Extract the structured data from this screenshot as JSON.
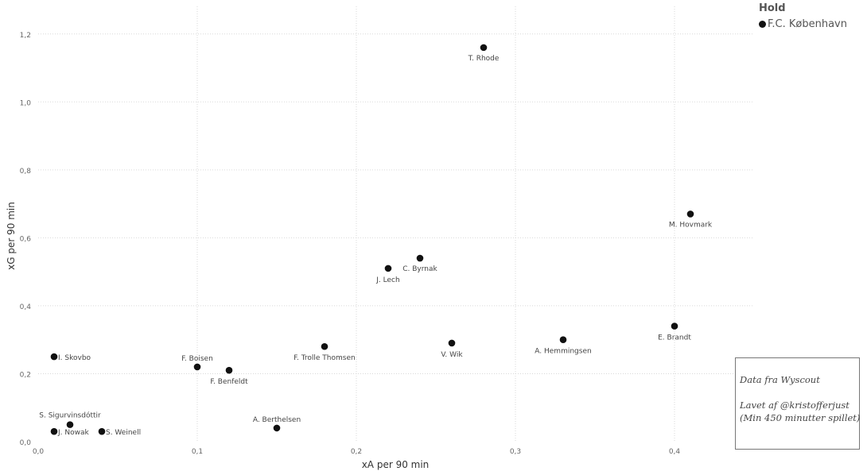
{
  "chart_data": {
    "type": "scatter",
    "xlabel": "xA per 90 min",
    "ylabel": "xG per 90 min",
    "xlim": [
      0,
      0.45
    ],
    "ylim": [
      0,
      1.3
    ],
    "xticks": [
      0,
      0.1,
      0.2,
      0.3,
      0.4
    ],
    "xtick_labels": [
      "0,0",
      "0,1",
      "0,2",
      "0,3",
      "0,4"
    ],
    "yticks": [
      0,
      0.2,
      0.4,
      0.6,
      0.8,
      1.0,
      1.2
    ],
    "ytick_labels": [
      "0,0",
      "0,2",
      "0,4",
      "0,6",
      "0,8",
      "1,0",
      "1,2"
    ],
    "grid": true,
    "legend_position": "top-right",
    "marker_color": "#111111",
    "points": [
      {
        "label": "T. Rhode",
        "x": 0.28,
        "y": 1.16
      },
      {
        "label": "M. Hovmark",
        "x": 0.41,
        "y": 0.67
      },
      {
        "label": "C. Byrnak",
        "x": 0.24,
        "y": 0.54
      },
      {
        "label": "J. Lech",
        "x": 0.22,
        "y": 0.51
      },
      {
        "label": "E. Brandt",
        "x": 0.4,
        "y": 0.34
      },
      {
        "label": "A. Hemmingsen",
        "x": 0.33,
        "y": 0.3
      },
      {
        "label": "V. Wik",
        "x": 0.26,
        "y": 0.29
      },
      {
        "label": "F. Trolle Thomsen",
        "x": 0.18,
        "y": 0.28
      },
      {
        "label": "I. Skovbo",
        "x": 0.01,
        "y": 0.25
      },
      {
        "label": "F. Boisen",
        "x": 0.1,
        "y": 0.22
      },
      {
        "label": "F. Benfeldt",
        "x": 0.12,
        "y": 0.21
      },
      {
        "label": "S. Sigurvinsdóttir",
        "x": 0.02,
        "y": 0.05
      },
      {
        "label": "A. Berthelsen",
        "x": 0.15,
        "y": 0.04
      },
      {
        "label": "J. Nowak",
        "x": 0.01,
        "y": 0.03
      },
      {
        "label": "S. Weinell",
        "x": 0.04,
        "y": 0.03
      }
    ]
  },
  "legend": {
    "title": "Hold",
    "series_label": "F.C. København"
  },
  "notes": {
    "source": "Data fra Wyscout",
    "author": "Lavet af @kristofferjust",
    "criteria": "(Min 450 minutter spillet)"
  }
}
